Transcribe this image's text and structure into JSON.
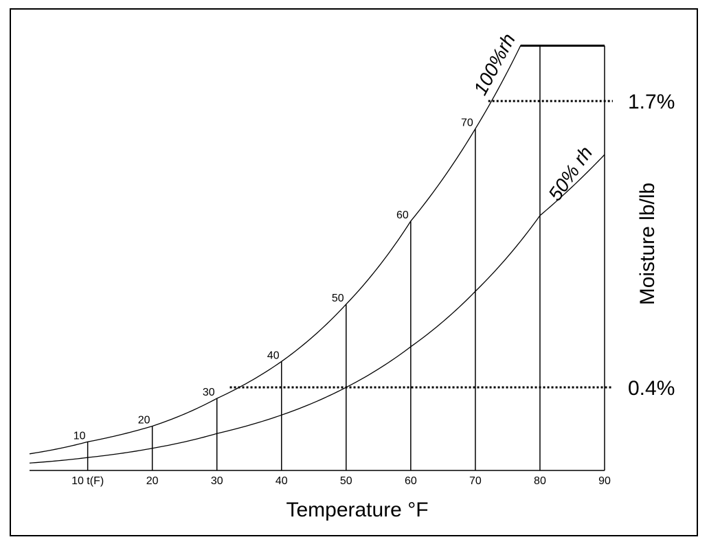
{
  "chart_data": {
    "type": "line",
    "xlabel": "Temperature °F",
    "ylabel": "Moisture lb/lb",
    "x_ticks": [
      "10 t(F)",
      "20",
      "30",
      "40",
      "50",
      "60",
      "70",
      "80",
      "90"
    ],
    "x_tick_values": [
      10,
      20,
      30,
      40,
      50,
      60,
      70,
      80,
      90
    ],
    "xlim": [
      1,
      90
    ],
    "ylim": [
      0,
      2.35
    ],
    "grid": false,
    "series": [
      {
        "name": "100%rh",
        "x": [
          1,
          10,
          20,
          30,
          40,
          50,
          60,
          70,
          77,
          90
        ],
        "y": [
          0.09,
          0.155,
          0.24,
          0.39,
          0.59,
          0.9,
          1.35,
          1.85,
          2.3,
          2.3
        ]
      },
      {
        "name": "50% rh",
        "x": [
          1,
          10,
          20,
          30,
          40,
          50,
          60,
          70,
          80,
          90
        ],
        "y": [
          0.04,
          0.07,
          0.12,
          0.2,
          0.3,
          0.45,
          0.67,
          0.97,
          1.38,
          1.71
        ]
      }
    ],
    "point_labels": [
      {
        "x": 10,
        "label": "10"
      },
      {
        "x": 20,
        "label": "20"
      },
      {
        "x": 30,
        "label": "30"
      },
      {
        "x": 40,
        "label": "40"
      },
      {
        "x": 50,
        "label": "50"
      },
      {
        "x": 60,
        "label": "60"
      },
      {
        "x": 70,
        "label": "70"
      }
    ],
    "reference_lines": [
      {
        "label": "1.7%",
        "y": 2.0,
        "x_from": 72,
        "x_to": 90
      },
      {
        "label": "0.4%",
        "y": 0.45,
        "x_from": 32,
        "x_to": 90
      }
    ]
  }
}
